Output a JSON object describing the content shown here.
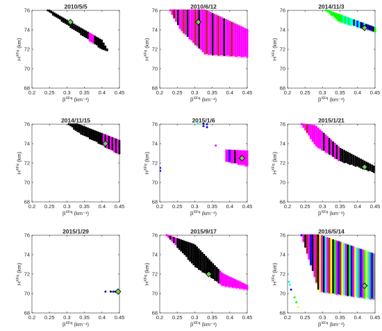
{
  "chart_data": [
    {
      "type": "scatter",
      "title": "2010/5/5",
      "xlabel_main": "β",
      "xlabel_sup": "XFq",
      "xlabel_unit": " (km⁻¹)",
      "ylabel_main": "H",
      "ylabel_sup": "XFq",
      "ylabel_unit": " (km)",
      "xlim": [
        0.2,
        0.45
      ],
      "ylim": [
        68,
        76
      ],
      "xticks": [
        "0.2",
        "0.25",
        "0.3",
        "0.35",
        "0.4",
        "0.45"
      ],
      "yticks": [
        "68",
        "70",
        "72",
        "74",
        "76"
      ],
      "grid": false,
      "marker": {
        "x": 0.31,
        "y": 74.8
      },
      "bands": [
        {
          "x": [
            0.245,
            0.25,
            0.4,
            0.415
          ],
          "top": [
            76,
            76,
            72.9,
            72.0
          ],
          "bot": [
            76,
            75.8,
            72.0,
            71.8
          ],
          "colors": [
            "#000000",
            "#000000",
            "#000000",
            "#000000",
            "#000000",
            "#000000",
            "#000000",
            "#000000",
            "#000000",
            "#000000",
            "#000000",
            "#000000",
            "#000000",
            "#000000",
            "#000000",
            "#000000",
            "#000000",
            "#000000",
            "#000000",
            "#000000",
            "#000000",
            "#000000",
            "#000000",
            "#000000",
            "#ff00ff",
            "#ff00ff",
            "#ff00ff"
          ],
          "step": 0.005
        }
      ],
      "points": []
    },
    {
      "type": "scatter",
      "title": "2010/6/12",
      "xlabel_main": "β",
      "xlabel_sup": "XFq",
      "xlabel_unit": " (km⁻¹)",
      "ylabel_main": "H",
      "ylabel_sup": "XFq",
      "ylabel_unit": " (km)",
      "xlim": [
        0.2,
        0.45
      ],
      "ylim": [
        68,
        76
      ],
      "xticks": [
        "0.2",
        "0.25",
        "0.3",
        "0.35",
        "0.4",
        "0.45"
      ],
      "yticks": [
        "68",
        "70",
        "72",
        "74",
        "76"
      ],
      "grid": false,
      "marker": {
        "x": 0.31,
        "y": 74.8
      },
      "bands": [
        {
          "x": [
            0.23,
            0.26,
            0.33,
            0.45
          ],
          "top": [
            76,
            76,
            76,
            74.0
          ],
          "bot": [
            76,
            74.0,
            71.5,
            71.2
          ],
          "colors": [
            "#ff00ff",
            "#ff00ff",
            "#8b0000",
            "#ff00ff",
            "#000000",
            "#ff00ff",
            "#ff00ff",
            "#b22222",
            "#ff00ff",
            "#000000",
            "#ff00ff",
            "#ff00ff",
            "#ff00ff",
            "#b22222",
            "#ff00ff",
            "#000000",
            "#ff00ff",
            "#ff00ff",
            "#ff00ff",
            "#b22222",
            "#ff00ff",
            "#ff00ff",
            "#000000",
            "#ff00ff",
            "#ff00ff",
            "#b22222",
            "#ff00ff",
            "#ff00ff",
            "#000000",
            "#ff00ff",
            "#ff00ff",
            "#ff00ff",
            "#b22222",
            "#ff00ff",
            "#ff00ff",
            "#ff00ff",
            "#ff00ff",
            "#ff00ff",
            "#ff00ff",
            "#ff00ff",
            "#ff00ff",
            "#ff00ff",
            "#ff00ff"
          ],
          "step": 0.0055
        }
      ],
      "points": []
    },
    {
      "type": "scatter",
      "title": "2014/11/3",
      "xlabel_main": "β",
      "xlabel_sup": "XFq",
      "xlabel_unit": " (km⁻¹)",
      "ylabel_main": "H",
      "ylabel_sup": "XFq",
      "ylabel_unit": " (km)",
      "xlim": [
        0.2,
        0.45
      ],
      "ylim": [
        68,
        76
      ],
      "xticks": [
        "0.2",
        "0.25",
        "0.3",
        "0.35",
        "0.4",
        "0.45"
      ],
      "yticks": [
        "68",
        "70",
        "72",
        "74",
        "76"
      ],
      "grid": false,
      "marker": {
        "x": 0.42,
        "y": 74.2
      },
      "bands": [
        {
          "x": [
            0.31,
            0.35,
            0.45
          ],
          "top": [
            76,
            75.5,
            74.2
          ],
          "bot": [
            76,
            74.8,
            73.8
          ],
          "colors": [
            "#00ff00",
            "#00ff00",
            "#00ff00",
            "#00ff00",
            "#00ff00",
            "#00ff00",
            "#00ff00",
            "#00ff00",
            "#00ff00",
            "#00ff00",
            "#00ffff",
            "#00ff00",
            "#00ffff",
            "#00ff00",
            "#00ffff",
            "#00ffff",
            "#000000",
            "#00ffff",
            "#0000ff",
            "#00ffff",
            "#000000",
            "#0000ff",
            "#00ffff",
            "#000000",
            "#0000ff",
            "#000000",
            "#0000ff",
            "#000000"
          ],
          "step": 0.005
        }
      ],
      "points": []
    },
    {
      "type": "scatter",
      "title": "2014/11/15",
      "xlabel_main": "β",
      "xlabel_sup": "XFq",
      "xlabel_unit": " (km⁻¹)",
      "ylabel_main": "H",
      "ylabel_sup": "XFq",
      "ylabel_unit": " (km)",
      "xlim": [
        0.2,
        0.45
      ],
      "ylim": [
        68,
        76
      ],
      "xticks": [
        "0.2",
        "0.25",
        "0.3",
        "0.35",
        "0.4",
        "0.45"
      ],
      "yticks": [
        "68",
        "70",
        "72",
        "74",
        "76"
      ],
      "grid": false,
      "marker": {
        "x": 0.41,
        "y": 74.0
      },
      "bands": [
        {
          "x": [
            0.305,
            0.33,
            0.45
          ],
          "top": [
            76,
            76,
            74.3
          ],
          "bot": [
            76,
            75.2,
            72.9
          ],
          "colors": [
            "#000000",
            "#000000",
            "#000000",
            "#000000",
            "#000000",
            "#000000",
            "#000000",
            "#000000",
            "#000000",
            "#000000",
            "#000000",
            "#000000",
            "#000000",
            "#000000",
            "#000000",
            "#000000",
            "#000000",
            "#000000",
            "#000000",
            "#000000",
            "#ff00ff",
            "#000000",
            "#ff00ff",
            "#000000",
            "#ff00ff",
            "#000000",
            "#ff00ff",
            "#000000",
            "#ff00ff"
          ],
          "step": 0.005
        }
      ],
      "points": []
    },
    {
      "type": "scatter",
      "title": "2015/1/6",
      "xlabel_main": "β",
      "xlabel_sup": "XFq",
      "xlabel_unit": " (km⁻¹)",
      "ylabel_main": "H",
      "ylabel_sup": "XFq",
      "ylabel_unit": " (km)",
      "xlim": [
        0.2,
        0.45
      ],
      "ylim": [
        68,
        76
      ],
      "xticks": [
        "0.2",
        "0.25",
        "0.3",
        "0.35",
        "0.4",
        "0.45"
      ],
      "yticks": [
        "68",
        "70",
        "72",
        "74",
        "76"
      ],
      "grid": false,
      "marker": {
        "x": 0.435,
        "y": 72.5
      },
      "bands": [
        {
          "x": [
            0.39,
            0.45
          ],
          "top": [
            73.3,
            73.2
          ],
          "bot": [
            72.2,
            71.7
          ],
          "colors": [
            "#ff00ff",
            "#ff00ff",
            "#0000ff",
            "#ff00ff",
            "#ff00ff",
            "#000000",
            "#ff00ff",
            "#ff00ff",
            "#ff00ff",
            "#ff00ff",
            "#ff00ff",
            "#ff00ff",
            "#ff00ff"
          ],
          "step": 0.005
        }
      ],
      "points": [
        {
          "x": 0.201,
          "y": 71.5,
          "c": "#0000ff"
        },
        {
          "x": 0.201,
          "y": 71.2,
          "c": "#0000ff"
        },
        {
          "x": 0.31,
          "y": 76.05,
          "c": "#00ffff"
        },
        {
          "x": 0.325,
          "y": 76.05,
          "c": "#000000"
        },
        {
          "x": 0.325,
          "y": 75.8,
          "c": "#0000ff"
        },
        {
          "x": 0.335,
          "y": 76.0,
          "c": "#0000ff"
        },
        {
          "x": 0.335,
          "y": 75.7,
          "c": "#0000ff"
        },
        {
          "x": 0.36,
          "y": 73.8,
          "c": "#ff00ff"
        }
      ]
    },
    {
      "type": "scatter",
      "title": "2015/1/21",
      "xlabel_main": "β",
      "xlabel_sup": "XFq",
      "xlabel_unit": " (km⁻¹)",
      "ylabel_main": "H",
      "ylabel_sup": "XFq",
      "ylabel_unit": " (km)",
      "xlim": [
        0.2,
        0.45
      ],
      "ylim": [
        68,
        76
      ],
      "xticks": [
        "0.2",
        "0.25",
        "0.3",
        "0.35",
        "0.4",
        "0.45"
      ],
      "yticks": [
        "68",
        "70",
        "72",
        "74",
        "76"
      ],
      "grid": false,
      "marker": {
        "x": 0.42,
        "y": 71.6
      },
      "bands": [
        {
          "x": [
            0.24,
            0.28,
            0.35,
            0.45
          ],
          "top": [
            76,
            75.8,
            73.5,
            71.6
          ],
          "bot": [
            76,
            73.8,
            72.2,
            71.0
          ],
          "colors": [
            "#ff00ff",
            "#ff00ff",
            "#ff00ff",
            "#b22222",
            "#ff00ff",
            "#ff00ff",
            "#ff00ff",
            "#ff00ff",
            "#ff00ff",
            "#ff00ff",
            "#ff00ff",
            "#ff00ff",
            "#000000",
            "#ff00ff",
            "#ff00ff",
            "#000000",
            "#ff00ff",
            "#000000",
            "#ff00ff",
            "#000000",
            "#ff00ff",
            "#000000",
            "#000000",
            "#000000",
            "#000000",
            "#000000",
            "#000000",
            "#000000",
            "#000000",
            "#000000",
            "#000000",
            "#000000",
            "#000000",
            "#000000",
            "#000000",
            "#000000",
            "#000000",
            "#000000",
            "#000000",
            "#000000"
          ],
          "step": 0.0053
        }
      ],
      "points": []
    },
    {
      "type": "scatter",
      "title": "2015/1/29",
      "xlabel_main": "β",
      "xlabel_sup": "XFq",
      "xlabel_unit": " (km⁻¹)",
      "ylabel_main": "H",
      "ylabel_sup": "XFq",
      "ylabel_unit": " (km)",
      "xlim": [
        0.2,
        0.45
      ],
      "ylim": [
        68,
        76
      ],
      "xticks": [
        "0.2",
        "0.25",
        "0.3",
        "0.35",
        "0.4",
        "0.45"
      ],
      "yticks": [
        "68",
        "70",
        "72",
        "74",
        "76"
      ],
      "grid": false,
      "marker": {
        "x": 0.446,
        "y": 70.2
      },
      "bands": [],
      "points": [
        {
          "x": 0.41,
          "y": 70.2,
          "c": "#0000ff"
        },
        {
          "x": 0.425,
          "y": 70.2,
          "c": "#000000"
        },
        {
          "x": 0.432,
          "y": 70.2,
          "c": "#0000ff"
        },
        {
          "x": 0.438,
          "y": 70.2,
          "c": "#000000"
        }
      ]
    },
    {
      "type": "scatter",
      "title": "2015/9/17",
      "xlabel_main": "β",
      "xlabel_sup": "XFq",
      "xlabel_unit": " (km⁻¹)",
      "ylabel_main": "H",
      "ylabel_sup": "XFq",
      "ylabel_unit": " (km)",
      "xlim": [
        0.2,
        0.45
      ],
      "ylim": [
        68,
        76
      ],
      "xticks": [
        "0.2",
        "0.25",
        "0.3",
        "0.35",
        "0.4",
        "0.45"
      ],
      "yticks": [
        "68",
        "70",
        "72",
        "74",
        "76"
      ],
      "grid": false,
      "marker": {
        "x": 0.34,
        "y": 72.0
      },
      "bands": [
        {
          "x": [
            0.22,
            0.3,
            0.38,
            0.45
          ],
          "top": [
            76,
            75.0,
            72.0,
            70.8
          ],
          "bot": [
            76,
            72.8,
            70.8,
            70.4
          ],
          "colors": [
            "#ff00ff",
            "#ff00ff",
            "#000000",
            "#ff00ff",
            "#000000",
            "#ff00ff",
            "#000000",
            "#000000",
            "#000000",
            "#000000",
            "#000000",
            "#000000",
            "#000000",
            "#000000",
            "#000000",
            "#000000",
            "#000000",
            "#000000",
            "#000000",
            "#000000",
            "#000000",
            "#000000",
            "#000000",
            "#000000",
            "#000000",
            "#000000",
            "#000000",
            "#000000",
            "#000000",
            "#000000",
            "#ff00ff",
            "#ff00ff",
            "#ff00ff",
            "#ff00ff",
            "#ff00ff",
            "#ff00ff",
            "#ff00ff",
            "#ff00ff",
            "#ff00ff",
            "#ff00ff",
            "#ff00ff",
            "#ff00ff",
            "#ff00ff",
            "#ff00ff",
            "#ff00ff",
            "#ff00ff"
          ],
          "step": 0.0051
        }
      ],
      "points": []
    },
    {
      "type": "scatter",
      "title": "2016/5/14",
      "xlabel_main": "β",
      "xlabel_sup": "XFq",
      "xlabel_unit": " (km⁻¹)",
      "ylabel_main": "H",
      "ylabel_sup": "XFq",
      "ylabel_unit": " (km)",
      "xlim": [
        0.2,
        0.45
      ],
      "ylim": [
        68,
        76
      ],
      "xticks": [
        "0.2",
        "0.25",
        "0.3",
        "0.35",
        "0.4",
        "0.45"
      ],
      "yticks": [
        "68",
        "70",
        "72",
        "74",
        "76"
      ],
      "grid": false,
      "marker": {
        "x": 0.42,
        "y": 70.8
      },
      "bands": [
        {
          "x": [
            0.24,
            0.29,
            0.45
          ],
          "top": [
            76,
            76,
            74.0
          ],
          "bot": [
            76,
            70.2,
            69.4
          ],
          "colors": [
            "#0000ff",
            "#ff00ff",
            "#000000",
            "#b22222",
            "#ff00ff",
            "#0000ff",
            "#000000",
            "#ff00ff",
            "#b22222",
            "#000000",
            "#ffff00",
            "#ff00ff",
            "#000000",
            "#00ffff",
            "#ff00ff",
            "#b22222",
            "#ffff00",
            "#000000",
            "#00ff00",
            "#ff00ff",
            "#0000ff",
            "#b22222",
            "#ffff00",
            "#00ffff",
            "#ff00ff",
            "#000000",
            "#00ff00",
            "#0000ff",
            "#ff00ff",
            "#ffff00",
            "#00ffff",
            "#808080",
            "#0000ff",
            "#ff00ff",
            "#00ff00",
            "#ffff00",
            "#00ffff",
            "#808080",
            "#0000ff",
            "#808080"
          ],
          "step": 0.0053
        }
      ],
      "points": [
        {
          "x": 0.204,
          "y": 71.2,
          "c": "#00ffff"
        },
        {
          "x": 0.207,
          "y": 70.9,
          "c": "#00ffff"
        },
        {
          "x": 0.21,
          "y": 70.4,
          "c": "#0000ff"
        },
        {
          "x": 0.22,
          "y": 69.6,
          "c": "#00ff00"
        },
        {
          "x": 0.225,
          "y": 69.1,
          "c": "#00ff00"
        },
        {
          "x": 0.23,
          "y": 68.6,
          "c": "#ffff00"
        }
      ]
    }
  ]
}
